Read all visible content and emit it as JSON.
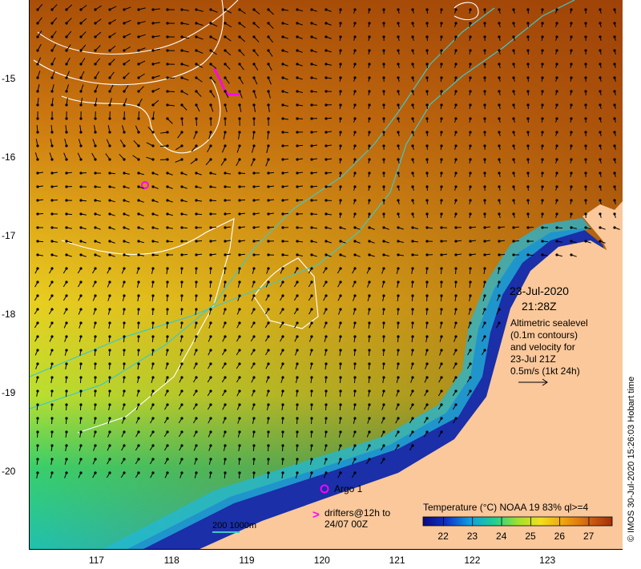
{
  "map": {
    "date": "23-Jul-2020",
    "time": "21:28Z",
    "altimetry_lines": [
      "Altimetric sealevel",
      "(0.1m contours)",
      "and velocity for",
      "23-Jul 21Z",
      "0.5m/s (1kt 24h)"
    ],
    "argo_label": "Argo 1",
    "drifters_line1": "drifters@12h to",
    "drifters_line2": "24/07 00Z",
    "drifter_symbol": ">",
    "isobath_label": "200  1000m",
    "colorbar_title": "Temperature (°C) NOAA 19 83% ql>=4",
    "colorbar_ticks": [
      "22",
      "23",
      "24",
      "25",
      "26",
      "27"
    ],
    "colorbar_range": [
      21.3,
      27.8
    ],
    "x_ticks": [
      "117",
      "118",
      "119",
      "120",
      "121",
      "122",
      "123"
    ],
    "y_ticks": [
      "-15",
      "-16",
      "-17",
      "-18",
      "-19",
      "-20"
    ],
    "lon_range": [
      116.1,
      124.0
    ],
    "lat_range": [
      -14.0,
      -21.0
    ],
    "credit": "© IMOS 30-Jul-2020 15:26:03 Hobart time",
    "colors": {
      "land": "#fac89b",
      "warm": "#b85a00",
      "mid": "#e3c200",
      "cool": "#2ad06a",
      "cold": "#1a2fa8",
      "contour": "#ffffff",
      "isobath": "#40c8c8",
      "argo": "#ff00ff"
    }
  }
}
